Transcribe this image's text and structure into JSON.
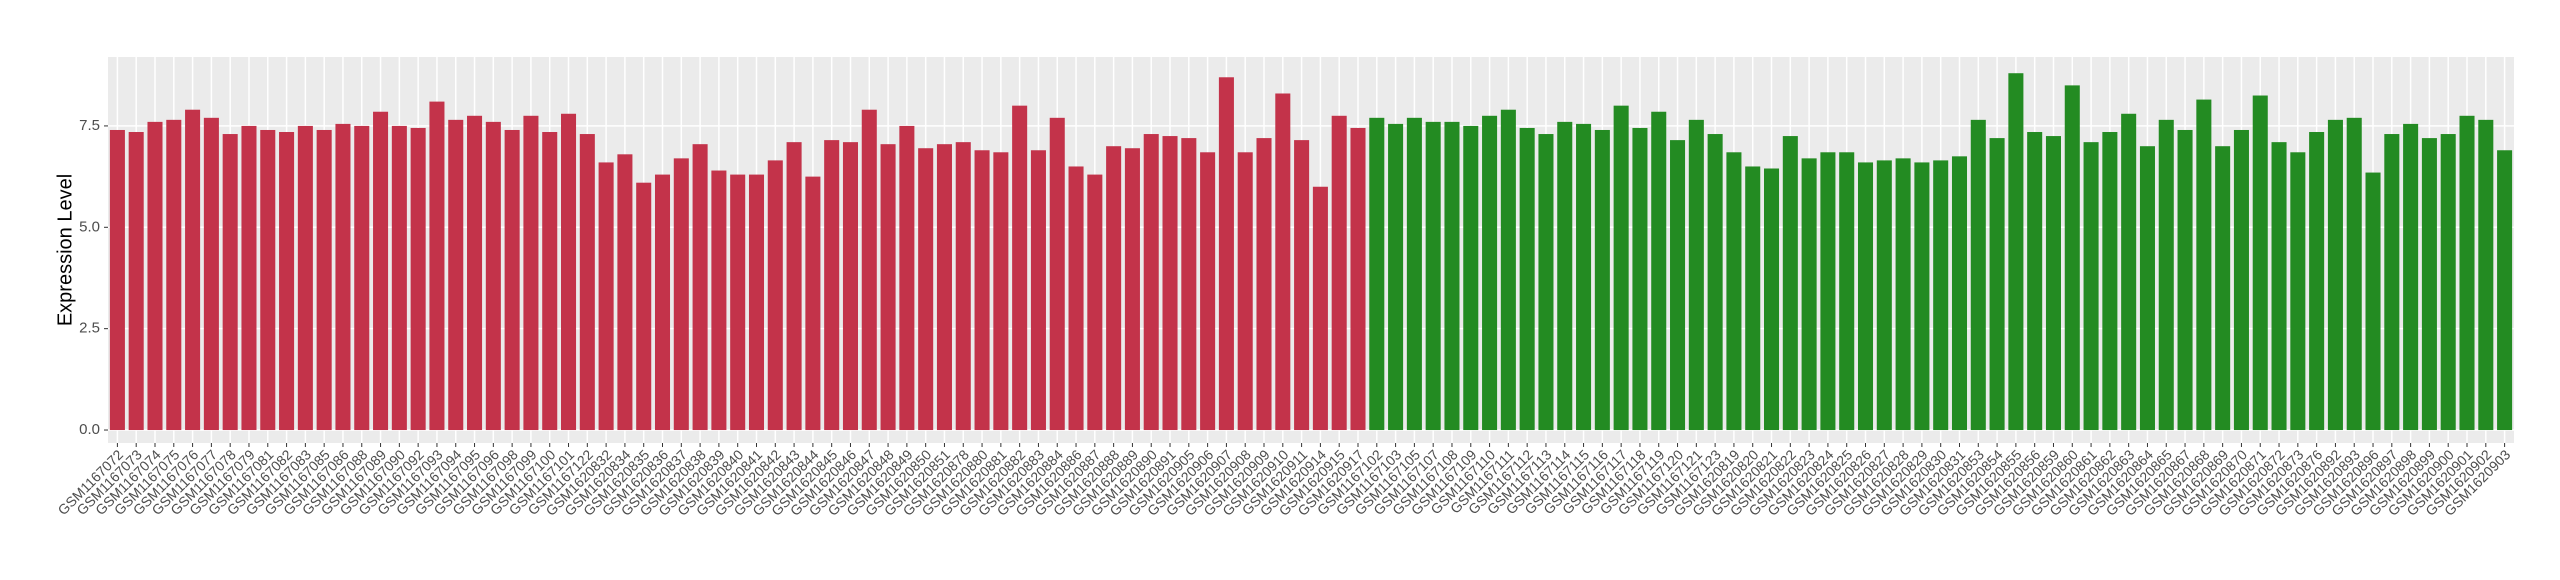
{
  "chart_data": {
    "type": "bar",
    "ylabel": "Expression Level",
    "categories": [
      "GSM1167072",
      "GSM1167073",
      "GSM1167074",
      "GSM1167075",
      "GSM1167076",
      "GSM1167077",
      "GSM1167078",
      "GSM1167079",
      "GSM1167081",
      "GSM1167082",
      "GSM1167083",
      "GSM1167085",
      "GSM1167086",
      "GSM1167088",
      "GSM1167089",
      "GSM1167090",
      "GSM1167092",
      "GSM1167093",
      "GSM1167094",
      "GSM1167095",
      "GSM1167096",
      "GSM1167098",
      "GSM1167099",
      "GSM1167100",
      "GSM1167101",
      "GSM1167122",
      "GSM1620832",
      "GSM1620834",
      "GSM1620835",
      "GSM1620836",
      "GSM1620837",
      "GSM1620838",
      "GSM1620839",
      "GSM1620840",
      "GSM1620841",
      "GSM1620842",
      "GSM1620843",
      "GSM1620844",
      "GSM1620845",
      "GSM1620846",
      "GSM1620847",
      "GSM1620848",
      "GSM1620849",
      "GSM1620850",
      "GSM1620851",
      "GSM1620878",
      "GSM1620880",
      "GSM1620881",
      "GSM1620882",
      "GSM1620883",
      "GSM1620884",
      "GSM1620886",
      "GSM1620887",
      "GSM1620888",
      "GSM1620889",
      "GSM1620890",
      "GSM1620891",
      "GSM1620905",
      "GSM1620906",
      "GSM1620907",
      "GSM1620908",
      "GSM1620909",
      "GSM1620910",
      "GSM1620911",
      "GSM1620914",
      "GSM1620915",
      "GSM1620917",
      "GSM1167102",
      "GSM1167103",
      "GSM1167105",
      "GSM1167107",
      "GSM1167108",
      "GSM1167109",
      "GSM1167110",
      "GSM1167111",
      "GSM1167112",
      "GSM1167113",
      "GSM1167114",
      "GSM1167115",
      "GSM1167116",
      "GSM1167117",
      "GSM1167118",
      "GSM1167119",
      "GSM1167120",
      "GSM1167121",
      "GSM1167123",
      "GSM1620819",
      "GSM1620820",
      "GSM1620821",
      "GSM1620822",
      "GSM1620823",
      "GSM1620824",
      "GSM1620825",
      "GSM1620826",
      "GSM1620827",
      "GSM1620828",
      "GSM1620829",
      "GSM1620830",
      "GSM1620831",
      "GSM1620853",
      "GSM1620854",
      "GSM1620855",
      "GSM1620856",
      "GSM1620859",
      "GSM1620860",
      "GSM1620861",
      "GSM1620862",
      "GSM1620863",
      "GSM1620864",
      "GSM1620865",
      "GSM1620867",
      "GSM1620868",
      "GSM1620869",
      "GSM1620870",
      "GSM1620871",
      "GSM1620872",
      "GSM1620873",
      "GSM1620876",
      "GSM1620892",
      "GSM1620893",
      "GSM1620896",
      "GSM1620897",
      "GSM1620898",
      "GSM1620899",
      "GSM1620900",
      "GSM1620901",
      "GSM1620902",
      "GSM1620903"
    ],
    "values": [
      7.4,
      7.35,
      7.6,
      7.65,
      7.9,
      7.7,
      7.3,
      7.5,
      7.4,
      7.35,
      7.5,
      7.4,
      7.55,
      7.5,
      7.85,
      7.5,
      7.45,
      8.1,
      7.65,
      7.75,
      7.6,
      7.4,
      7.75,
      7.35,
      7.8,
      7.3,
      6.6,
      6.8,
      6.1,
      6.3,
      6.7,
      7.05,
      6.4,
      6.3,
      6.3,
      6.65,
      7.1,
      6.25,
      7.15,
      7.1,
      7.9,
      7.05,
      7.5,
      6.95,
      7.05,
      7.1,
      6.9,
      6.85,
      8.0,
      6.9,
      7.7,
      6.5,
      6.3,
      7.0,
      6.95,
      7.3,
      7.25,
      7.2,
      6.85,
      8.7,
      6.85,
      7.2,
      8.3,
      7.15,
      6.0,
      7.75,
      7.45,
      7.7,
      7.55,
      7.7,
      7.6,
      7.6,
      7.5,
      7.75,
      7.9,
      7.45,
      7.3,
      7.6,
      7.55,
      7.4,
      8.0,
      7.45,
      7.85,
      7.15,
      7.65,
      7.3,
      6.85,
      6.5,
      6.45,
      7.25,
      6.7,
      6.85,
      6.85,
      6.6,
      6.65,
      6.7,
      6.6,
      6.65,
      6.75,
      7.65,
      7.2,
      8.8,
      7.35,
      7.25,
      8.5,
      7.1,
      7.35,
      7.8,
      7.0,
      7.65,
      7.4,
      8.15,
      7.0,
      7.4,
      8.25,
      7.1,
      6.85,
      7.35,
      7.65,
      7.7,
      6.35,
      7.3,
      7.55,
      7.2,
      7.3,
      7.75,
      7.65,
      6.9
    ],
    "colors": [
      "#c3334a",
      "#c3334a",
      "#c3334a",
      "#c3334a",
      "#c3334a",
      "#c3334a",
      "#c3334a",
      "#c3334a",
      "#c3334a",
      "#c3334a",
      "#c3334a",
      "#c3334a",
      "#c3334a",
      "#c3334a",
      "#c3334a",
      "#c3334a",
      "#c3334a",
      "#c3334a",
      "#c3334a",
      "#c3334a",
      "#c3334a",
      "#c3334a",
      "#c3334a",
      "#c3334a",
      "#c3334a",
      "#c3334a",
      "#c3334a",
      "#c3334a",
      "#c3334a",
      "#c3334a",
      "#c3334a",
      "#c3334a",
      "#c3334a",
      "#c3334a",
      "#c3334a",
      "#c3334a",
      "#c3334a",
      "#c3334a",
      "#c3334a",
      "#c3334a",
      "#c3334a",
      "#c3334a",
      "#c3334a",
      "#c3334a",
      "#c3334a",
      "#c3334a",
      "#c3334a",
      "#c3334a",
      "#c3334a",
      "#c3334a",
      "#c3334a",
      "#c3334a",
      "#c3334a",
      "#c3334a",
      "#c3334a",
      "#c3334a",
      "#c3334a",
      "#c3334a",
      "#c3334a",
      "#c3334a",
      "#c3334a",
      "#c3334a",
      "#c3334a",
      "#c3334a",
      "#c3334a",
      "#c3334a",
      "#c3334a",
      "#238b22",
      "#238b22",
      "#238b22",
      "#238b22",
      "#238b22",
      "#238b22",
      "#238b22",
      "#238b22",
      "#238b22",
      "#238b22",
      "#238b22",
      "#238b22",
      "#238b22",
      "#238b22",
      "#238b22",
      "#238b22",
      "#238b22",
      "#238b22",
      "#238b22",
      "#238b22",
      "#238b22",
      "#238b22",
      "#238b22",
      "#238b22",
      "#238b22",
      "#238b22",
      "#238b22",
      "#238b22",
      "#238b22",
      "#238b22",
      "#238b22",
      "#238b22",
      "#238b22",
      "#238b22",
      "#238b22",
      "#238b22",
      "#238b22",
      "#238b22",
      "#238b22",
      "#238b22",
      "#238b22",
      "#238b22",
      "#238b22",
      "#238b22",
      "#238b22",
      "#238b22",
      "#238b22",
      "#238b22",
      "#238b22",
      "#238b22",
      "#238b22",
      "#238b22",
      "#238b22",
      "#238b22",
      "#238b22",
      "#238b22",
      "#238b22",
      "#238b22",
      "#238b22",
      "#238b22",
      "#238b22"
    ],
    "ylim": [
      -0.32,
      9.2
    ],
    "yticks": [
      {
        "value": 0,
        "label": "0.0"
      },
      2.5,
      {
        "value": 5,
        "label": "5.0"
      },
      7.5
    ],
    "grid": true
  }
}
